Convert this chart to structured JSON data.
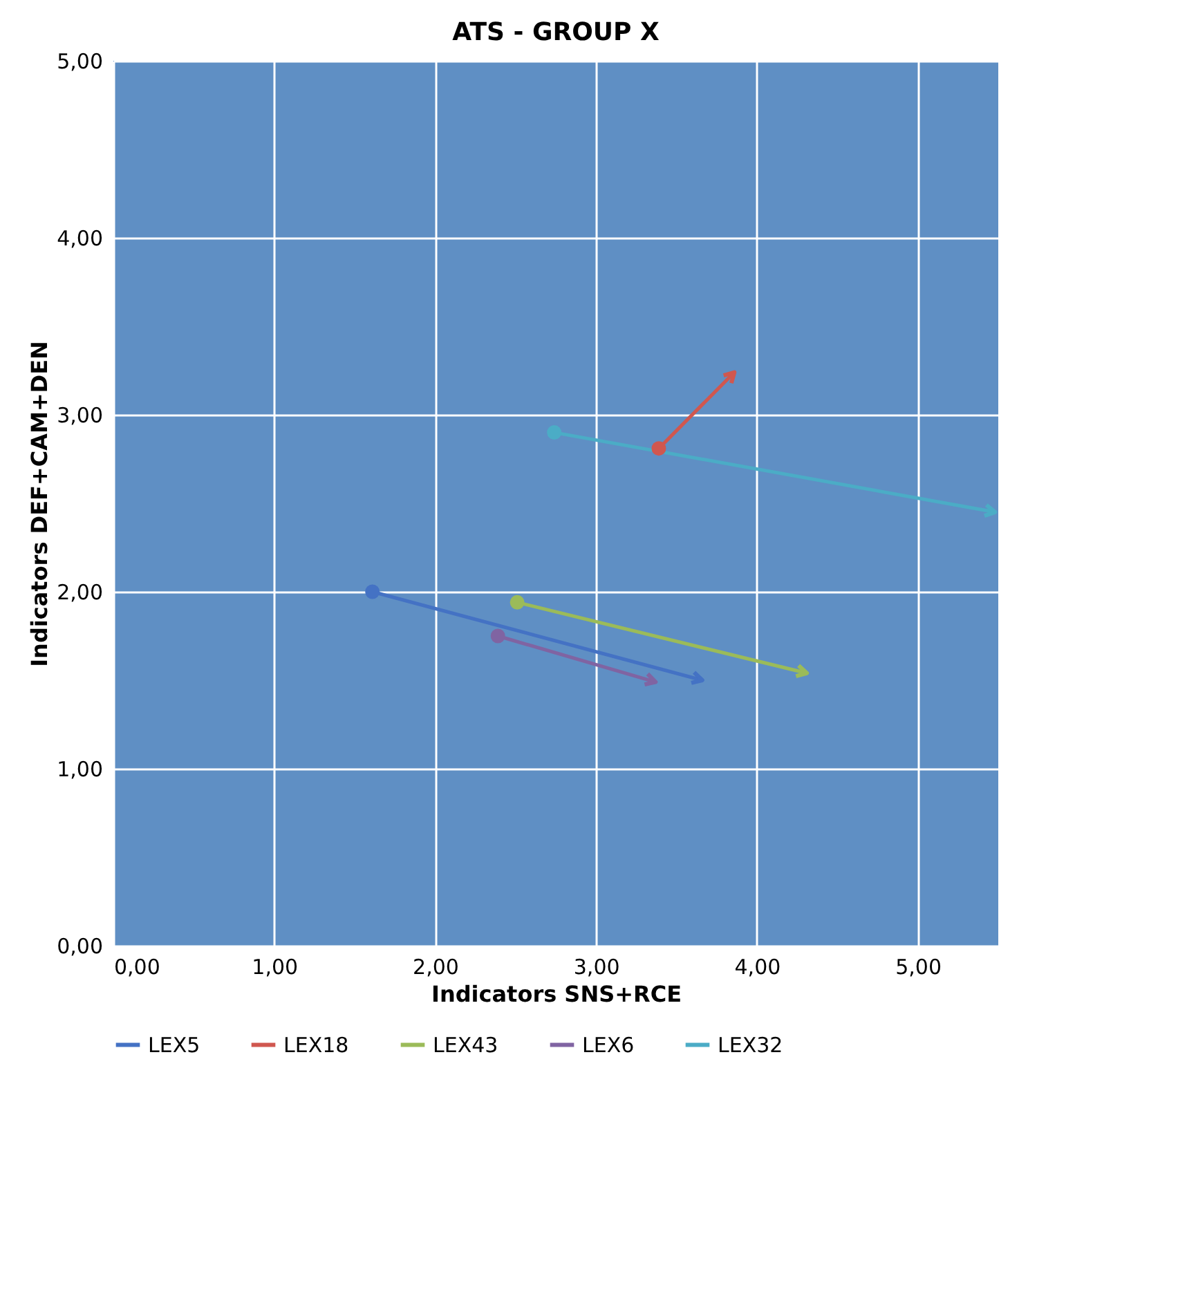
{
  "chart_data": {
    "type": "line",
    "title": "ATS - GROUP X",
    "xlabel": "Indicators SNS+RCE",
    "ylabel": "Indicators DEF+CAM+DEN",
    "xlim": [
      0,
      5.5
    ],
    "ylim": [
      0,
      5
    ],
    "xticks": [
      {
        "value": 0,
        "label": "0,00"
      },
      {
        "value": 1,
        "label": "1,00"
      },
      {
        "value": 2,
        "label": "2,00"
      },
      {
        "value": 3,
        "label": "3,00"
      },
      {
        "value": 4,
        "label": "4,00"
      },
      {
        "value": 5,
        "label": "5,00"
      }
    ],
    "yticks": [
      {
        "value": 0,
        "label": "0,00"
      },
      {
        "value": 1,
        "label": "1,00"
      },
      {
        "value": 2,
        "label": "2,00"
      },
      {
        "value": 3,
        "label": "3,00"
      },
      {
        "value": 4,
        "label": "4,00"
      },
      {
        "value": 5,
        "label": "5,00"
      }
    ],
    "grid": true,
    "legend": "bottom",
    "marker": "circle",
    "line_style": "solid",
    "series": [
      {
        "name": "LEX5",
        "color": "#4472c4",
        "x": [
          1.61,
          3.66
        ],
        "values": [
          2.0,
          1.5
        ]
      },
      {
        "name": "LEX18",
        "color": "#d0574f",
        "x": [
          3.39,
          3.86
        ],
        "values": [
          2.81,
          3.24
        ]
      },
      {
        "name": "LEX43",
        "color": "#9bbb59",
        "x": [
          2.51,
          4.31
        ],
        "values": [
          1.94,
          1.54
        ]
      },
      {
        "name": "LEX6",
        "color": "#8064a2",
        "x": [
          2.39,
          3.37
        ],
        "values": [
          1.75,
          1.49
        ]
      },
      {
        "name": "LEX32",
        "color": "#4bacc6",
        "x": [
          2.74,
          5.48
        ],
        "values": [
          2.9,
          2.45
        ]
      }
    ]
  }
}
